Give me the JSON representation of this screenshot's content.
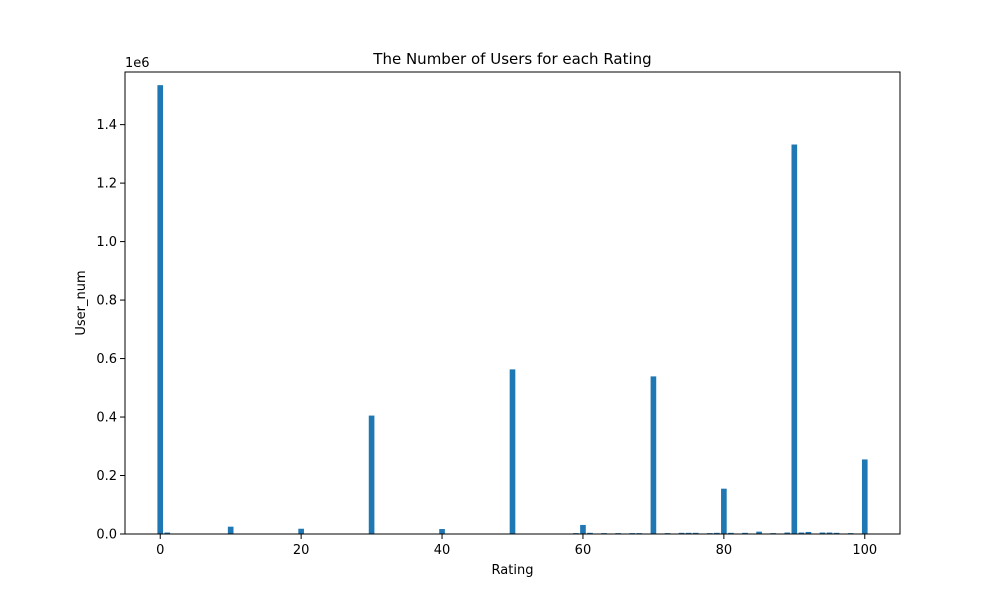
{
  "chart_data": {
    "type": "bar",
    "title": "The Number of Users for each Rating",
    "xlabel": "Rating",
    "ylabel": "User_num",
    "y_offset_label": "1e6",
    "xlim": [
      -5,
      105
    ],
    "ylim": [
      0,
      1580000
    ],
    "x_ticks": [
      0,
      20,
      40,
      60,
      80,
      100
    ],
    "y_ticks": [
      0.0,
      0.2,
      0.4,
      0.6,
      0.8,
      1.0,
      1.2,
      1.4
    ],
    "y_tick_labels": [
      "0.0",
      "0.2",
      "0.4",
      "0.6",
      "0.8",
      "1.0",
      "1.2",
      "1.4"
    ],
    "bar_color": "#1f77b4",
    "grid": false,
    "series": [
      {
        "x": [
          0,
          1,
          10,
          20,
          30,
          40,
          50,
          59,
          60,
          61,
          63,
          65,
          67,
          68,
          70,
          72,
          74,
          75,
          76,
          78,
          79,
          80,
          81,
          83,
          85,
          87,
          89,
          90,
          91,
          92,
          94,
          95,
          96,
          98,
          100
        ],
        "values": [
          1535000,
          5000,
          25000,
          18000,
          405000,
          17000,
          563000,
          3000,
          31000,
          4000,
          3000,
          3000,
          3000,
          3000,
          539000,
          3000,
          4000,
          4000,
          4000,
          3000,
          4000,
          155000,
          4000,
          4000,
          8000,
          3000,
          5000,
          1332000,
          5000,
          7000,
          5000,
          5000,
          4000,
          3000,
          255000
        ]
      }
    ]
  }
}
